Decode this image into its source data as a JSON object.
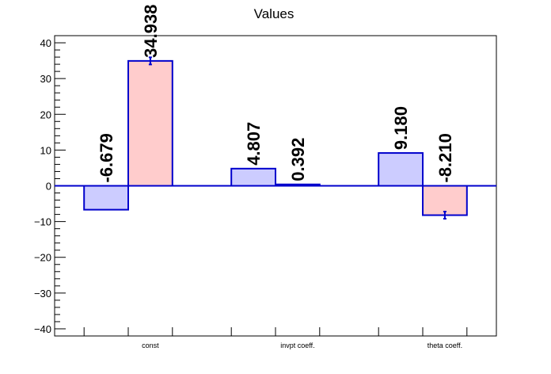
{
  "chart_data": {
    "type": "bar",
    "title": "Values",
    "xlabel": "",
    "ylabel": "",
    "categories": [
      "const",
      "invpt coeff.",
      "theta coeff."
    ],
    "ylim": [
      -42,
      42
    ],
    "yticks": [
      -40,
      -30,
      -20,
      -10,
      0,
      10,
      20,
      30,
      40
    ],
    "ytick_labels": [
      "−40",
      "−30",
      "−20",
      "−10",
      "0",
      "10",
      "20",
      "30",
      "40"
    ],
    "grid": false,
    "legend": "none",
    "series": [
      {
        "values": [
          -6.679,
          4.807,
          9.18
        ],
        "labels": [
          "-6.679",
          "4.807",
          "9.180"
        ],
        "errors": [
          0,
          0,
          0
        ],
        "fill": "#ccccff",
        "stroke": "#0000cc"
      },
      {
        "values": [
          34.938,
          0.392,
          -8.21
        ],
        "labels": [
          "34.938",
          "0.392",
          "-8.210"
        ],
        "errors": [
          1.0,
          0,
          1.0
        ],
        "fill": "#ffcccc",
        "stroke": "#0000cc"
      }
    ]
  }
}
